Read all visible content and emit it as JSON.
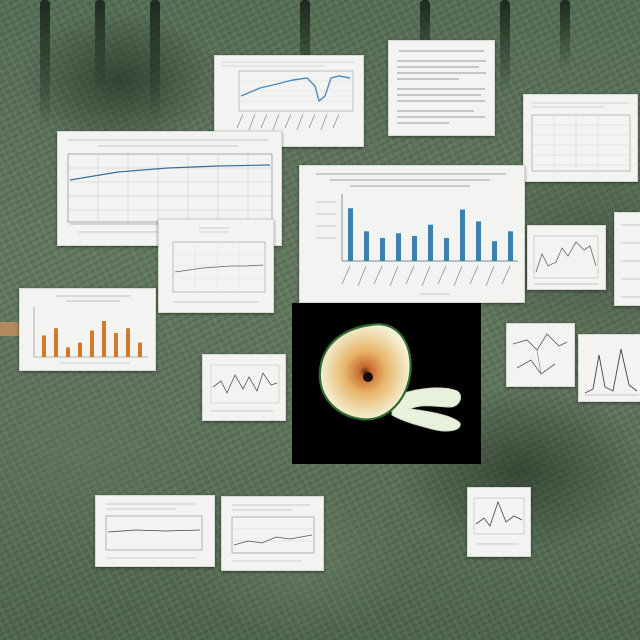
{
  "scene": {
    "subject": "collage",
    "colors": {
      "foliage": "#5d735a",
      "paper": "#f3f4f1",
      "bar_blue": "#3c82b0",
      "bar_orange": "#d07a2c",
      "panel_background": "#000000",
      "specimen_yolk": "#e8b56a"
    }
  },
  "charts": {
    "bar_center_values": [
      0.8,
      0.45,
      0.35,
      0.42,
      0.38,
      0.55,
      0.35,
      0.78,
      0.6,
      0.3,
      0.45
    ],
    "bar_orange_values": [
      0.45,
      0.6,
      0.2,
      0.3,
      0.55,
      0.75,
      0.5,
      0.6,
      0.3
    ]
  }
}
